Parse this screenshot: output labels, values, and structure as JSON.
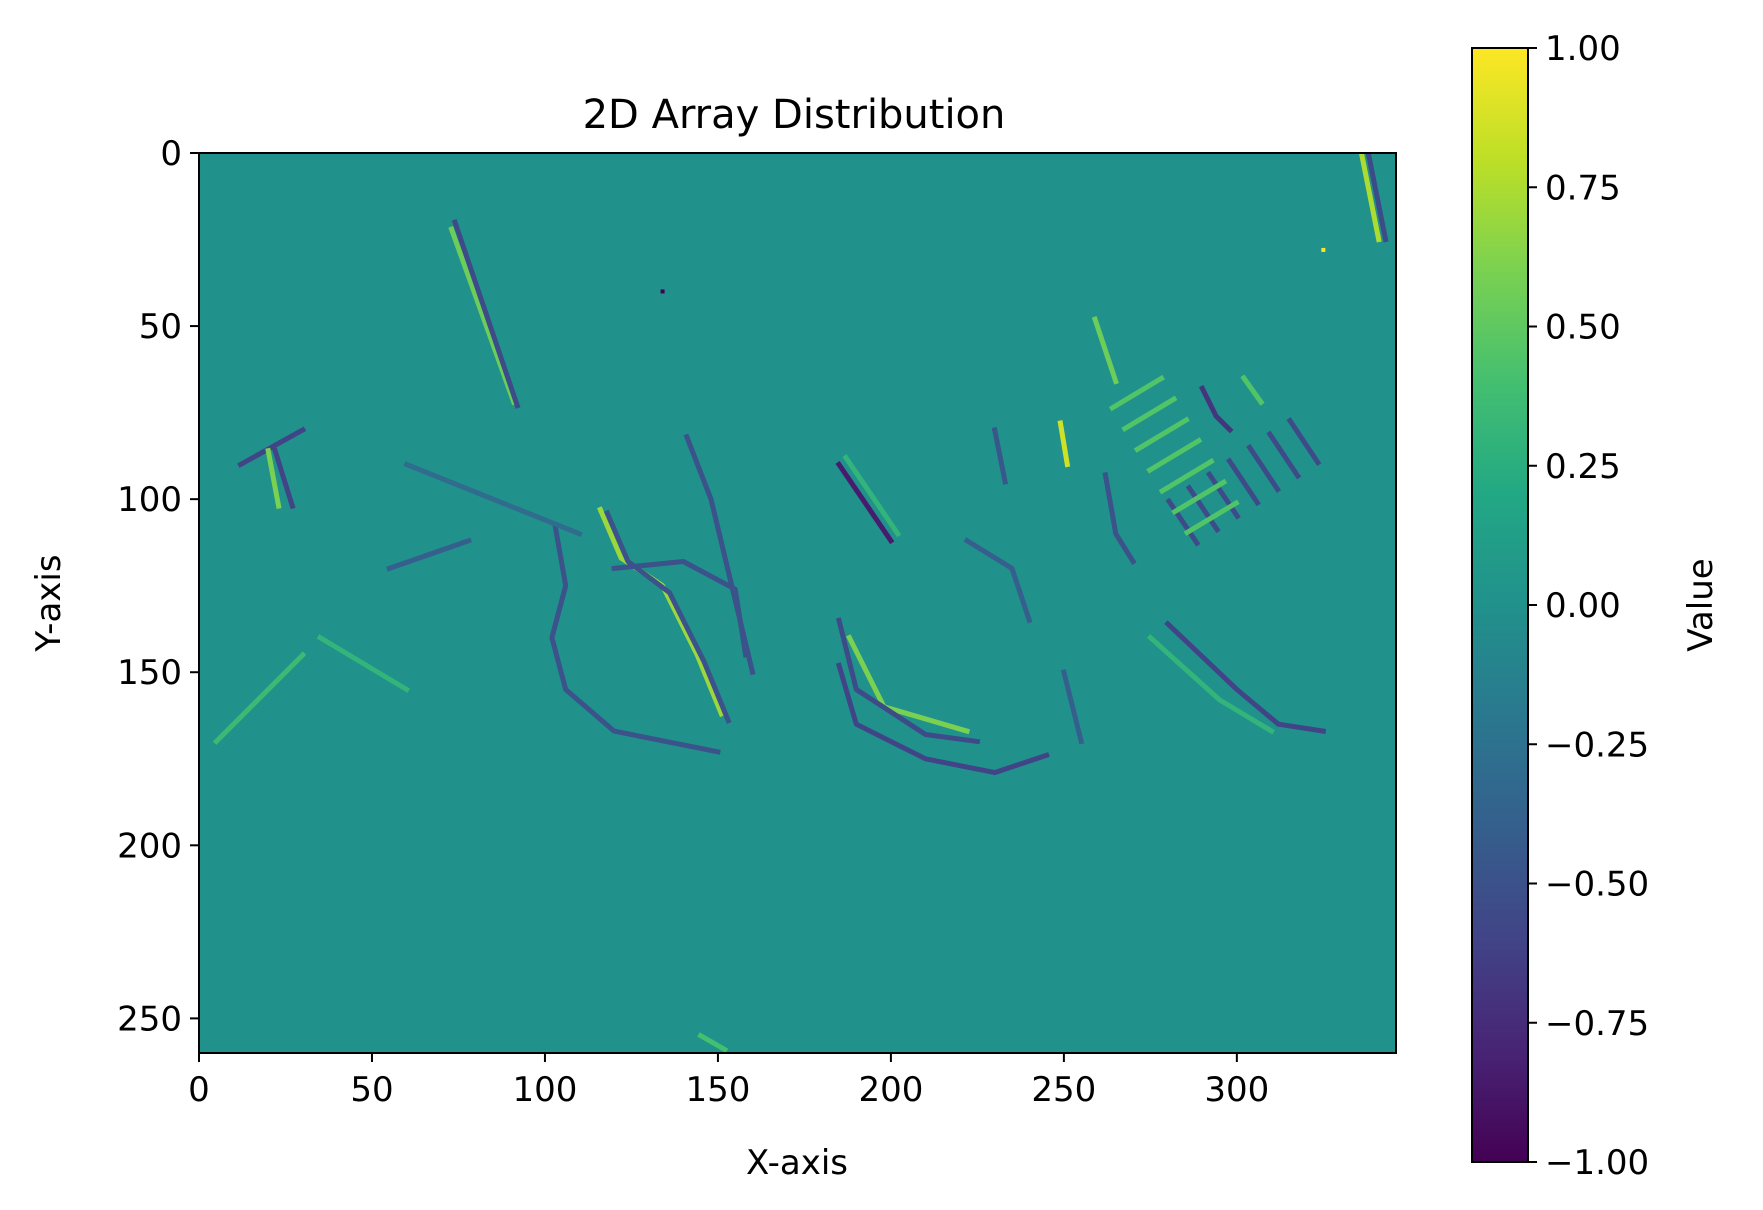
{
  "chart_data": {
    "type": "heatmap",
    "title": "2D Array Distribution",
    "xlabel": "X-axis",
    "ylabel": "Y-axis",
    "xlim": [
      0,
      346
    ],
    "ylim": [
      260,
      0
    ],
    "x_ticks": [
      0,
      50,
      100,
      150,
      200,
      250,
      300
    ],
    "y_ticks": [
      0,
      50,
      100,
      150,
      200,
      250
    ],
    "x_tick_labels": [
      "0",
      "50",
      "100",
      "150",
      "200",
      "250",
      "300"
    ],
    "y_tick_labels": [
      "0",
      "50",
      "100",
      "150",
      "200",
      "250"
    ],
    "colormap": "viridis",
    "background_value": 0.0,
    "colorbar": {
      "label": "Value",
      "range": [
        -1.0,
        1.0
      ],
      "ticks": [
        1.0,
        0.75,
        0.5,
        0.25,
        0.0,
        -0.25,
        -0.5,
        -0.75,
        -1.0
      ],
      "tick_labels": [
        "1.00",
        "0.75",
        "0.50",
        "0.25",
        "0.00",
        "−0.25",
        "−0.50",
        "−0.75",
        "−1.00"
      ]
    },
    "grid": false,
    "features": [
      {
        "name": "diagonal-streak",
        "points": [
          [
            73,
            22
          ],
          [
            91,
            72
          ]
        ],
        "value": 0.55
      },
      {
        "name": "diagonal-streak",
        "points": [
          [
            74,
            20
          ],
          [
            92,
            73
          ]
        ],
        "value": -0.55
      },
      {
        "name": "t-shape-top",
        "points": [
          [
            12,
            90
          ],
          [
            30,
            80
          ]
        ],
        "value": -0.6
      },
      {
        "name": "t-shape-stem",
        "points": [
          [
            20,
            86
          ],
          [
            23,
            102
          ]
        ],
        "value": 0.6
      },
      {
        "name": "t-shape-stem",
        "points": [
          [
            22,
            86
          ],
          [
            27,
            102
          ]
        ],
        "value": -0.6
      },
      {
        "name": "curve",
        "points": [
          [
            103,
            108
          ],
          [
            106,
            125
          ],
          [
            102,
            140
          ],
          [
            106,
            155
          ],
          [
            120,
            167
          ],
          [
            150,
            173
          ]
        ],
        "value": -0.5
      },
      {
        "name": "curve",
        "points": [
          [
            116,
            103
          ],
          [
            122,
            117
          ],
          [
            134,
            125
          ],
          [
            144,
            145
          ],
          [
            151,
            162
          ]
        ],
        "value": 0.7
      },
      {
        "name": "curve",
        "points": [
          [
            118,
            104
          ],
          [
            124,
            118
          ],
          [
            136,
            127
          ],
          [
            146,
            147
          ],
          [
            153,
            164
          ]
        ],
        "value": -0.5
      },
      {
        "name": "arc",
        "points": [
          [
            120,
            120
          ],
          [
            140,
            118
          ],
          [
            155,
            126
          ],
          [
            158,
            145
          ]
        ],
        "value": -0.5
      },
      {
        "name": "streak",
        "points": [
          [
            141,
            82
          ],
          [
            148,
            100
          ],
          [
            160,
            150
          ]
        ],
        "value": -0.5
      },
      {
        "name": "streak",
        "points": [
          [
            185,
            90
          ],
          [
            200,
            112
          ]
        ],
        "value": -0.85
      },
      {
        "name": "streak",
        "points": [
          [
            187,
            88
          ],
          [
            202,
            110
          ]
        ],
        "value": 0.3
      },
      {
        "name": "arc",
        "points": [
          [
            188,
            140
          ],
          [
            198,
            160
          ],
          [
            222,
            167
          ]
        ],
        "value": 0.6
      },
      {
        "name": "arc",
        "points": [
          [
            185,
            135
          ],
          [
            190,
            155
          ],
          [
            210,
            168
          ],
          [
            225,
            170
          ]
        ],
        "value": -0.55
      },
      {
        "name": "arc",
        "points": [
          [
            185,
            148
          ],
          [
            190,
            165
          ],
          [
            210,
            175
          ],
          [
            230,
            179
          ],
          [
            245,
            174
          ]
        ],
        "value": -0.6
      },
      {
        "name": "curve",
        "points": [
          [
            222,
            112
          ],
          [
            235,
            120
          ],
          [
            240,
            135
          ]
        ],
        "value": -0.4
      },
      {
        "name": "streak",
        "points": [
          [
            249,
            78
          ],
          [
            251,
            90
          ]
        ],
        "value": 0.85
      },
      {
        "name": "streak",
        "points": [
          [
            259,
            48
          ],
          [
            265,
            66
          ]
        ],
        "value": 0.55
      },
      {
        "name": "streak",
        "points": [
          [
            230,
            80
          ],
          [
            233,
            95
          ]
        ],
        "value": -0.45
      },
      {
        "name": "curve",
        "points": [
          [
            262,
            93
          ],
          [
            265,
            110
          ],
          [
            270,
            118
          ]
        ],
        "value": -0.5
      },
      {
        "name": "curve",
        "points": [
          [
            280,
            136
          ],
          [
            300,
            155
          ],
          [
            312,
            165
          ],
          [
            325,
            167
          ]
        ],
        "value": -0.6
      },
      {
        "name": "curve",
        "points": [
          [
            275,
            140
          ],
          [
            295,
            158
          ],
          [
            310,
            167
          ]
        ],
        "value": 0.3
      },
      {
        "name": "curve",
        "points": [
          [
            250,
            150
          ],
          [
            255,
            170
          ]
        ],
        "value": -0.4
      },
      {
        "name": "small-loop",
        "points": [
          [
            290,
            68
          ],
          [
            294,
            76
          ],
          [
            298,
            80
          ]
        ],
        "value": -0.7
      },
      {
        "name": "small-loop",
        "points": [
          [
            302,
            65
          ],
          [
            307,
            72
          ]
        ],
        "value": 0.45
      },
      {
        "name": "corner-streak",
        "points": [
          [
            336,
            0
          ],
          [
            341,
            25
          ]
        ],
        "value": 0.75
      },
      {
        "name": "corner-streak",
        "points": [
          [
            338,
            0
          ],
          [
            343,
            25
          ]
        ],
        "value": -0.55
      },
      {
        "name": "speck",
        "points": [
          [
            325,
            28
          ],
          [
            325,
            28
          ]
        ],
        "value": 1.0
      },
      {
        "name": "speck",
        "points": [
          [
            134,
            40
          ],
          [
            134,
            40
          ]
        ],
        "value": -1.0
      },
      {
        "name": "diagonal-streak",
        "points": [
          [
            55,
            120
          ],
          [
            78,
            112
          ]
        ],
        "value": -0.4
      },
      {
        "name": "diagonal-streak",
        "points": [
          [
            35,
            140
          ],
          [
            60,
            155
          ]
        ],
        "value": 0.3
      },
      {
        "name": "diagonal-streak",
        "points": [
          [
            5,
            170
          ],
          [
            30,
            145
          ]
        ],
        "value": 0.35
      },
      {
        "name": "diagonal-streak",
        "points": [
          [
            60,
            90
          ],
          [
            110,
            110
          ]
        ],
        "value": -0.3
      },
      {
        "name": "diagonal-streak",
        "points": [
          [
            145,
            255
          ],
          [
            152,
            259
          ]
        ],
        "value": 0.4
      }
    ],
    "grid_lines": {
      "family_a": {
        "start": [
          280,
          100
        ],
        "dir": [
          1,
          1.5
        ],
        "count": 7,
        "spacing": 7,
        "length": 16,
        "value": -0.55
      },
      "family_b": {
        "start": [
          285,
          110
        ],
        "dir": [
          1,
          -0.6
        ],
        "count": 7,
        "spacing": 7,
        "length": 18,
        "value": 0.45
      }
    }
  }
}
